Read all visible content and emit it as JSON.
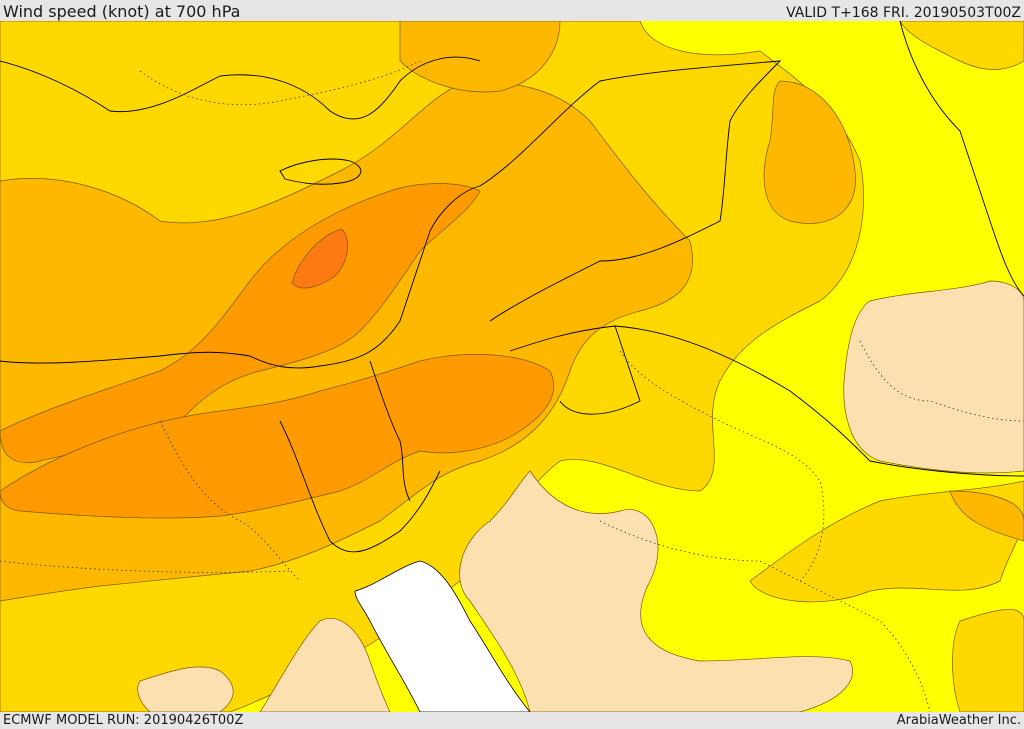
{
  "header": {
    "title": "Wind speed (knot) at 700 hPa",
    "valid": "VALID T+168 FRI. 20190503T00Z"
  },
  "footer": {
    "model_run": "ECMWF MODEL RUN: 20190426T00Z",
    "provider": "ArabiaWeather Inc."
  },
  "map": {
    "type": "wind-speed-contour-map",
    "palette": {
      "very_low": "#fde0b0",
      "low": "#ffff00",
      "moderate": "#ffd800",
      "fresh": "#ffb800",
      "strong": "#ff9a00",
      "very_strong": "#ff7a10",
      "sea": "#ffffff",
      "contour_line": "#7a5a00",
      "border_line": "#000000"
    },
    "icons": [
      "country-border",
      "coastline",
      "contour-line"
    ]
  }
}
